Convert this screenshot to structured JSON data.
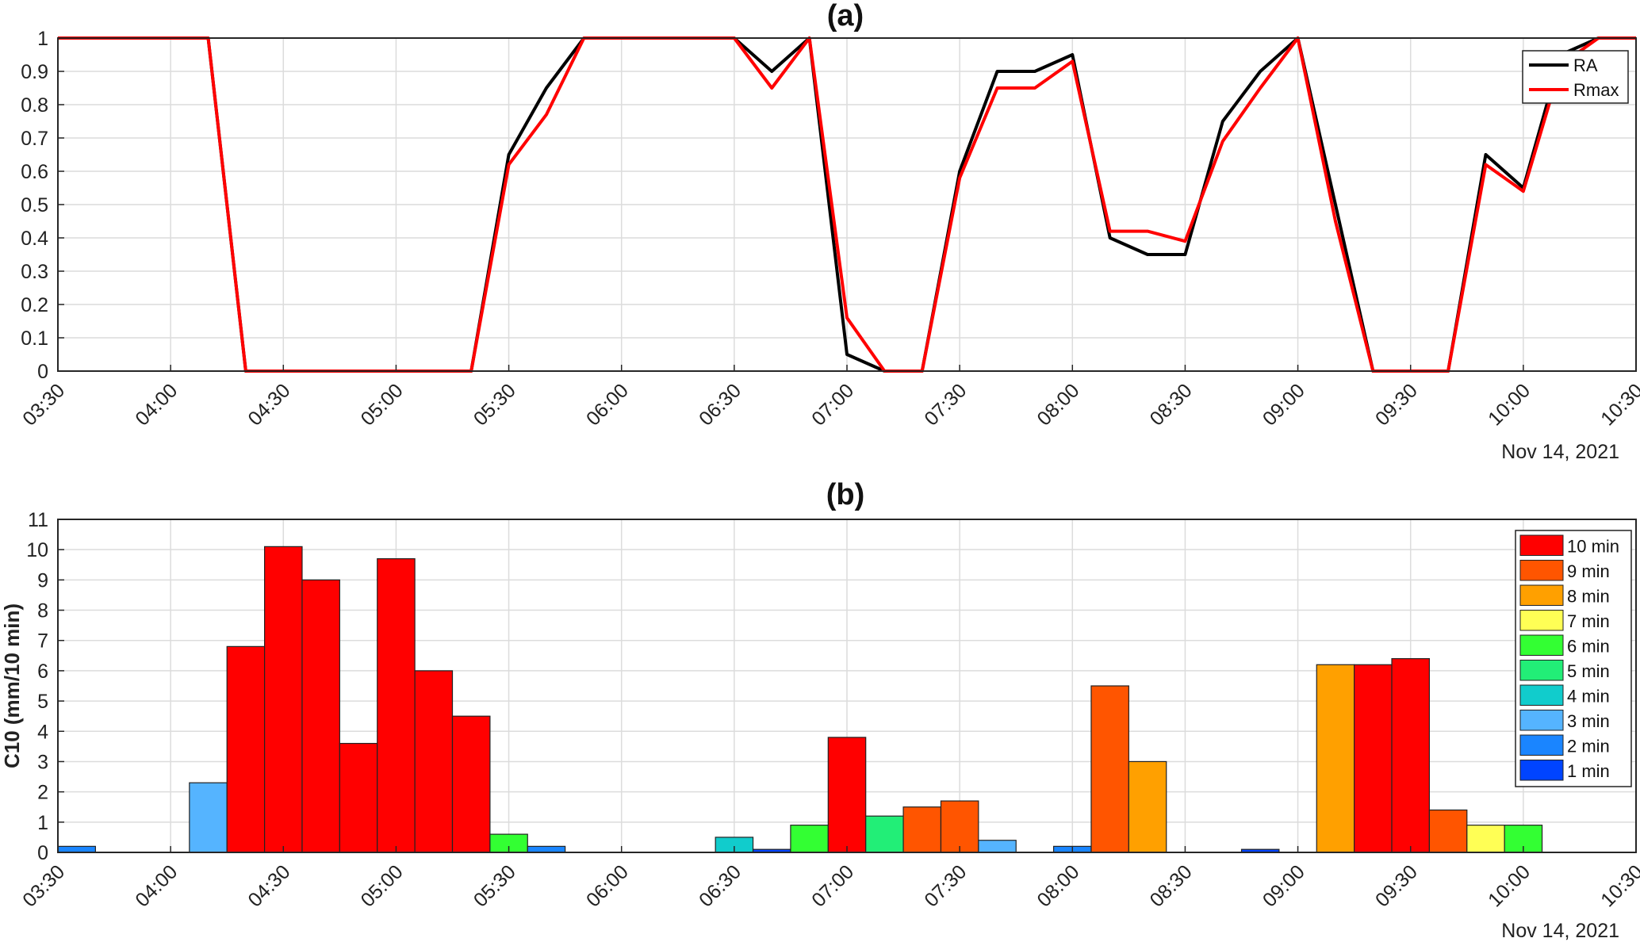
{
  "chart_data": [
    {
      "type": "line",
      "title": "(a)",
      "date_label": "Nov 14, 2021",
      "x_ticks": [
        "03:30",
        "04:00",
        "04:30",
        "05:00",
        "05:30",
        "06:00",
        "06:30",
        "07:00",
        "07:30",
        "08:00",
        "08:30",
        "09:00",
        "09:30",
        "10:00",
        "10:30"
      ],
      "y_ticks": [
        "0",
        "0.1",
        "0.2",
        "0.3",
        "0.4",
        "0.5",
        "0.6",
        "0.7",
        "0.8",
        "0.9",
        "1"
      ],
      "xlim": [
        "03:30",
        "10:30"
      ],
      "ylim": [
        0,
        1
      ],
      "grid": true,
      "legend_position": "top-right",
      "series": [
        {
          "name": "RA",
          "color": "#000000",
          "x": [
            "03:30",
            "03:40",
            "03:50",
            "04:00",
            "04:10",
            "04:20",
            "04:30",
            "04:40",
            "04:50",
            "05:00",
            "05:10",
            "05:20",
            "05:30",
            "05:40",
            "05:50",
            "06:00",
            "06:10",
            "06:20",
            "06:30",
            "06:40",
            "06:50",
            "07:00",
            "07:10",
            "07:20",
            "07:30",
            "07:40",
            "07:50",
            "08:00",
            "08:10",
            "08:20",
            "08:30",
            "08:40",
            "08:50",
            "09:00",
            "09:10",
            "09:20",
            "09:30",
            "09:40",
            "09:50",
            "10:00",
            "10:10",
            "10:20",
            "10:30"
          ],
          "values": [
            1,
            1,
            1,
            1,
            1,
            0,
            0,
            0,
            0,
            0,
            0,
            0,
            0.65,
            0.85,
            1,
            1,
            1,
            1,
            1,
            0.9,
            1,
            0.05,
            0,
            0,
            0.6,
            0.9,
            0.9,
            0.95,
            0.4,
            0.35,
            0.35,
            0.75,
            0.9,
            1,
            0.5,
            0,
            0,
            0,
            0.65,
            0.55,
            0.95,
            1,
            1
          ]
        },
        {
          "name": "Rmax",
          "color": "#ff0000",
          "x": [
            "03:30",
            "03:40",
            "03:50",
            "04:00",
            "04:10",
            "04:20",
            "04:30",
            "04:40",
            "04:50",
            "05:00",
            "05:10",
            "05:20",
            "05:30",
            "05:40",
            "05:50",
            "06:00",
            "06:10",
            "06:20",
            "06:30",
            "06:40",
            "06:50",
            "07:00",
            "07:10",
            "07:20",
            "07:30",
            "07:40",
            "07:50",
            "08:00",
            "08:10",
            "08:20",
            "08:30",
            "08:40",
            "08:50",
            "09:00",
            "09:10",
            "09:20",
            "09:30",
            "09:40",
            "09:50",
            "10:00",
            "10:10",
            "10:20",
            "10:30"
          ],
          "values": [
            1,
            1,
            1,
            1,
            1,
            0,
            0,
            0,
            0,
            0,
            0,
            0,
            0.62,
            0.77,
            1,
            1,
            1,
            1,
            1,
            0.85,
            1,
            0.16,
            0,
            0,
            0.58,
            0.85,
            0.85,
            0.93,
            0.42,
            0.42,
            0.39,
            0.69,
            0.85,
            1,
            0.45,
            0,
            0,
            0,
            0.62,
            0.54,
            0.92,
            1,
            1
          ]
        }
      ]
    },
    {
      "type": "bar",
      "title": "(b)",
      "date_label": "Nov 14, 2021",
      "ylabel": "C10 (mm/10 min)",
      "x_ticks": [
        "03:30",
        "04:00",
        "04:30",
        "05:00",
        "05:30",
        "06:00",
        "06:30",
        "07:00",
        "07:30",
        "08:00",
        "08:30",
        "09:00",
        "09:30",
        "10:00",
        "10:30"
      ],
      "y_ticks": [
        "0",
        "1",
        "2",
        "3",
        "4",
        "5",
        "6",
        "7",
        "8",
        "9",
        "10",
        "11"
      ],
      "xlim": [
        "03:30",
        "10:30"
      ],
      "ylim": [
        0,
        11
      ],
      "grid": true,
      "legend_position": "top-right",
      "legend": [
        {
          "label": "10 min",
          "color": "#ff0000"
        },
        {
          "label": "9 min",
          "color": "#ff5500"
        },
        {
          "label": "8 min",
          "color": "#ffa000"
        },
        {
          "label": "7 min",
          "color": "#ffff55"
        },
        {
          "label": "6 min",
          "color": "#33ff33"
        },
        {
          "label": "5 min",
          "color": "#22ee77"
        },
        {
          "label": "4 min",
          "color": "#11cccc"
        },
        {
          "label": "3 min",
          "color": "#55b4ff"
        },
        {
          "label": "2 min",
          "color": "#1a85ff"
        },
        {
          "label": "1 min",
          "color": "#0044ff"
        }
      ],
      "bars": [
        {
          "start": "03:30",
          "value": 0.2,
          "duration": "2 min"
        },
        {
          "start": "04:05",
          "value": 2.3,
          "duration": "3 min"
        },
        {
          "start": "04:15",
          "value": 6.8,
          "duration": "10 min"
        },
        {
          "start": "04:25",
          "value": 10.1,
          "duration": "10 min"
        },
        {
          "start": "04:35",
          "value": 9.0,
          "duration": "10 min"
        },
        {
          "start": "04:45",
          "value": 3.6,
          "duration": "10 min"
        },
        {
          "start": "04:55",
          "value": 9.7,
          "duration": "10 min"
        },
        {
          "start": "05:05",
          "value": 6.0,
          "duration": "10 min"
        },
        {
          "start": "05:15",
          "value": 4.5,
          "duration": "10 min"
        },
        {
          "start": "05:25",
          "value": 0.6,
          "duration": "6 min"
        },
        {
          "start": "05:35",
          "value": 0.2,
          "duration": "2 min"
        },
        {
          "start": "06:25",
          "value": 0.5,
          "duration": "4 min"
        },
        {
          "start": "06:35",
          "value": 0.1,
          "duration": "1 min"
        },
        {
          "start": "06:45",
          "value": 0.9,
          "duration": "6 min"
        },
        {
          "start": "06:55",
          "value": 3.8,
          "duration": "10 min"
        },
        {
          "start": "07:05",
          "value": 1.2,
          "duration": "5 min"
        },
        {
          "start": "07:15",
          "value": 1.5,
          "duration": "9 min"
        },
        {
          "start": "07:25",
          "value": 1.7,
          "duration": "9 min"
        },
        {
          "start": "07:35",
          "value": 0.4,
          "duration": "3 min"
        },
        {
          "start": "07:55",
          "value": 0.2,
          "duration": "2 min"
        },
        {
          "start": "08:05",
          "value": 5.5,
          "duration": "9 min"
        },
        {
          "start": "08:15",
          "value": 3.0,
          "duration": "8 min"
        },
        {
          "start": "08:45",
          "value": 0.1,
          "duration": "1 min"
        },
        {
          "start": "09:05",
          "value": 6.2,
          "duration": "8 min"
        },
        {
          "start": "09:15",
          "value": 6.2,
          "duration": "10 min"
        },
        {
          "start": "09:25",
          "value": 6.4,
          "duration": "10 min"
        },
        {
          "start": "09:35",
          "value": 1.4,
          "duration": "9 min"
        },
        {
          "start": "09:45",
          "value": 0.9,
          "duration": "7 min"
        },
        {
          "start": "09:55",
          "value": 0.9,
          "duration": "6 min"
        }
      ]
    }
  ]
}
